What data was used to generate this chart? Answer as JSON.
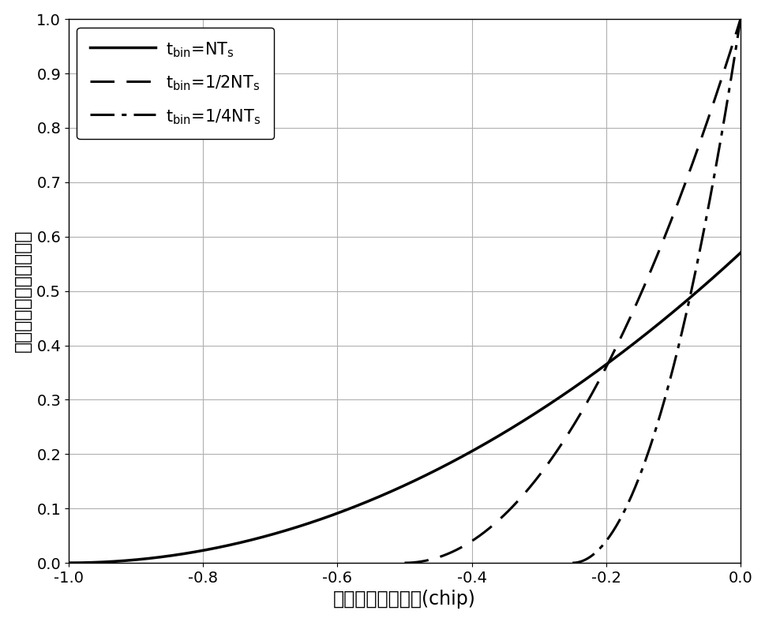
{
  "xlabel": "捕获之后码相位差(chip)",
  "ylabel": "捕获之后码相位精化比例",
  "xlim": [
    -1,
    0
  ],
  "ylim": [
    0,
    1
  ],
  "xticks": [
    -1,
    -0.8,
    -0.6,
    -0.4,
    -0.2,
    0
  ],
  "yticks": [
    0,
    0.1,
    0.2,
    0.3,
    0.4,
    0.5,
    0.6,
    0.7,
    0.8,
    0.9,
    1
  ],
  "line1_x_start": -1.0,
  "line2_x_start": -0.5,
  "line3_x_start": -0.25,
  "exponent": 2.0,
  "scale1": 0.57,
  "scale2": 1.0,
  "scale3": 1.0,
  "lw_solid": 2.5,
  "lw_dashed": 2.2,
  "lw_dashdot": 2.2,
  "grid_color": "#b0b0b0",
  "background_color": "#ffffff",
  "font_size_label": 17,
  "font_size_tick": 14,
  "font_size_legend": 15
}
